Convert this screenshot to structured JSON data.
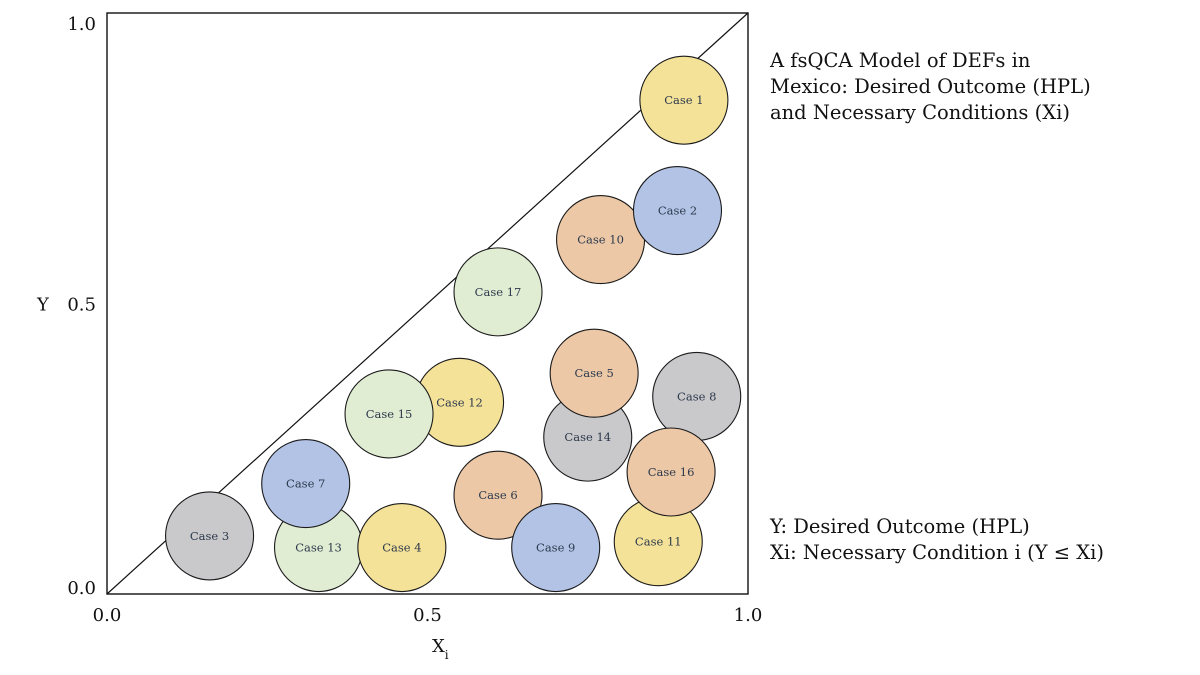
{
  "chart_data": {
    "type": "scatter",
    "title_lines": [
      "A fsQCA Model of DEFs in",
      "Mexico: Desired Outcome (HPL)",
      "and Necessary Conditions (Xi)"
    ],
    "xlabel": "Xi",
    "ylabel": "Y",
    "xlim": [
      0,
      1
    ],
    "ylim": [
      0,
      1
    ],
    "x_ticks": [
      "0.0",
      "0.5",
      "1.0"
    ],
    "y_ticks": [
      "0.0",
      "0.5",
      "1.0"
    ],
    "diagonal": "Y = X",
    "colors": {
      "yellow": "#f5e299",
      "blue": "#b2c3e6",
      "orange": "#ecc8a7",
      "gray": "#c9c8cb",
      "green": "#e1edd3"
    },
    "cases": [
      {
        "label": "Case 3",
        "x": 0.16,
        "y": 0.1,
        "color": "gray"
      },
      {
        "label": "Case 13",
        "x": 0.33,
        "y": 0.08,
        "color": "green"
      },
      {
        "label": "Case 7",
        "x": 0.31,
        "y": 0.19,
        "color": "blue"
      },
      {
        "label": "Case 4",
        "x": 0.46,
        "y": 0.08,
        "color": "yellow"
      },
      {
        "label": "Case 12",
        "x": 0.55,
        "y": 0.33,
        "color": "yellow"
      },
      {
        "label": "Case 15",
        "x": 0.44,
        "y": 0.31,
        "color": "green"
      },
      {
        "label": "Case 6",
        "x": 0.61,
        "y": 0.17,
        "color": "orange"
      },
      {
        "label": "Case 9",
        "x": 0.7,
        "y": 0.08,
        "color": "blue"
      },
      {
        "label": "Case 17",
        "x": 0.61,
        "y": 0.52,
        "color": "green"
      },
      {
        "label": "Case 14",
        "x": 0.75,
        "y": 0.27,
        "color": "gray"
      },
      {
        "label": "Case 5",
        "x": 0.76,
        "y": 0.38,
        "color": "orange"
      },
      {
        "label": "Case 10",
        "x": 0.77,
        "y": 0.61,
        "color": "orange"
      },
      {
        "label": "Case 8",
        "x": 0.92,
        "y": 0.34,
        "color": "gray"
      },
      {
        "label": "Case 11",
        "x": 0.86,
        "y": 0.09,
        "color": "yellow"
      },
      {
        "label": "Case 16",
        "x": 0.88,
        "y": 0.21,
        "color": "orange"
      },
      {
        "label": "Case 2",
        "x": 0.89,
        "y": 0.66,
        "color": "blue"
      },
      {
        "label": "Case 1",
        "x": 0.9,
        "y": 0.85,
        "color": "yellow"
      }
    ]
  },
  "legend": {
    "y_def": "Y: Desired Outcome (HPL)",
    "x_def": "Xi: Necessary Condition i (Y ≤ Xi)"
  }
}
